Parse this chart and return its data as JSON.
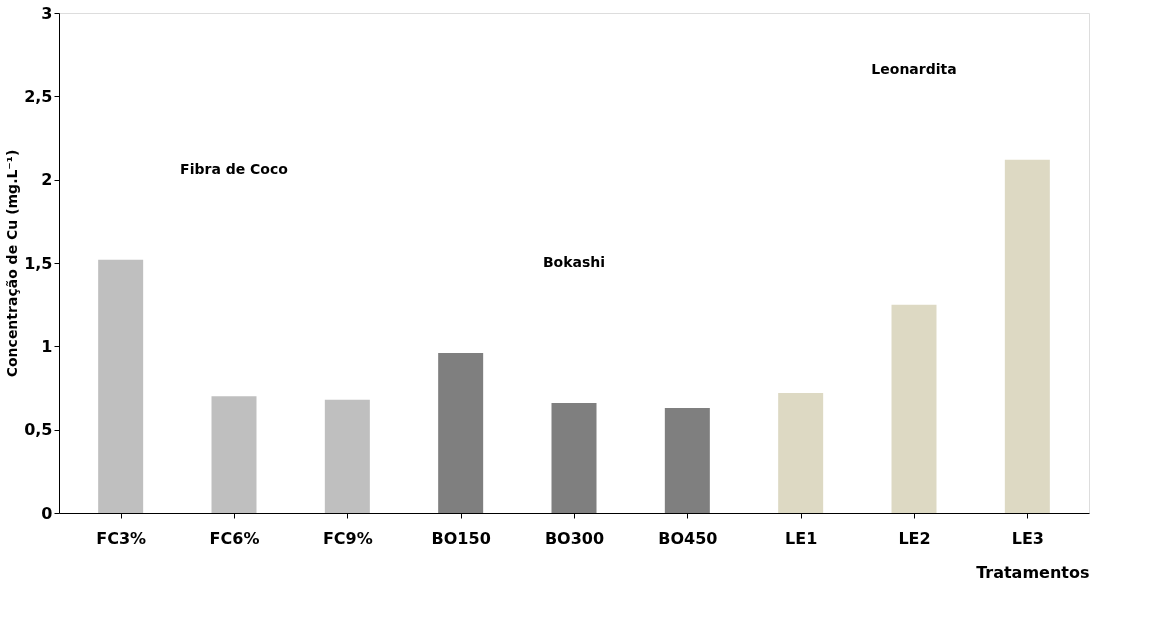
{
  "chart_data": {
    "type": "bar",
    "xlabel": "Tratamentos",
    "ylabel": "Concentração de Cu (mg.L⁻¹)",
    "categories": [
      "FC3%",
      "FC6%",
      "FC9%",
      "BO150",
      "BO300",
      "BO450",
      "LE1",
      "LE2",
      "LE3"
    ],
    "values": [
      1.52,
      0.7,
      0.68,
      0.96,
      0.66,
      0.63,
      0.72,
      1.25,
      2.12
    ],
    "colors": [
      "#bfbfbf",
      "#bfbfbf",
      "#bfbfbf",
      "#7f7f7f",
      "#7f7f7f",
      "#7f7f7f",
      "#ddd9c3",
      "#ddd9c3",
      "#ddd9c3"
    ],
    "ylim": [
      0,
      3
    ],
    "yticks": [
      0,
      {
        "value": 0.5,
        "label": "0,5"
      },
      1,
      {
        "value": 1.5,
        "label": "1,5"
      },
      2,
      {
        "value": 2.5,
        "label": "2,5"
      },
      3
    ],
    "grid": false,
    "annotations": [
      "Fibra de Coco",
      "Bokashi",
      "Leonardita"
    ]
  }
}
